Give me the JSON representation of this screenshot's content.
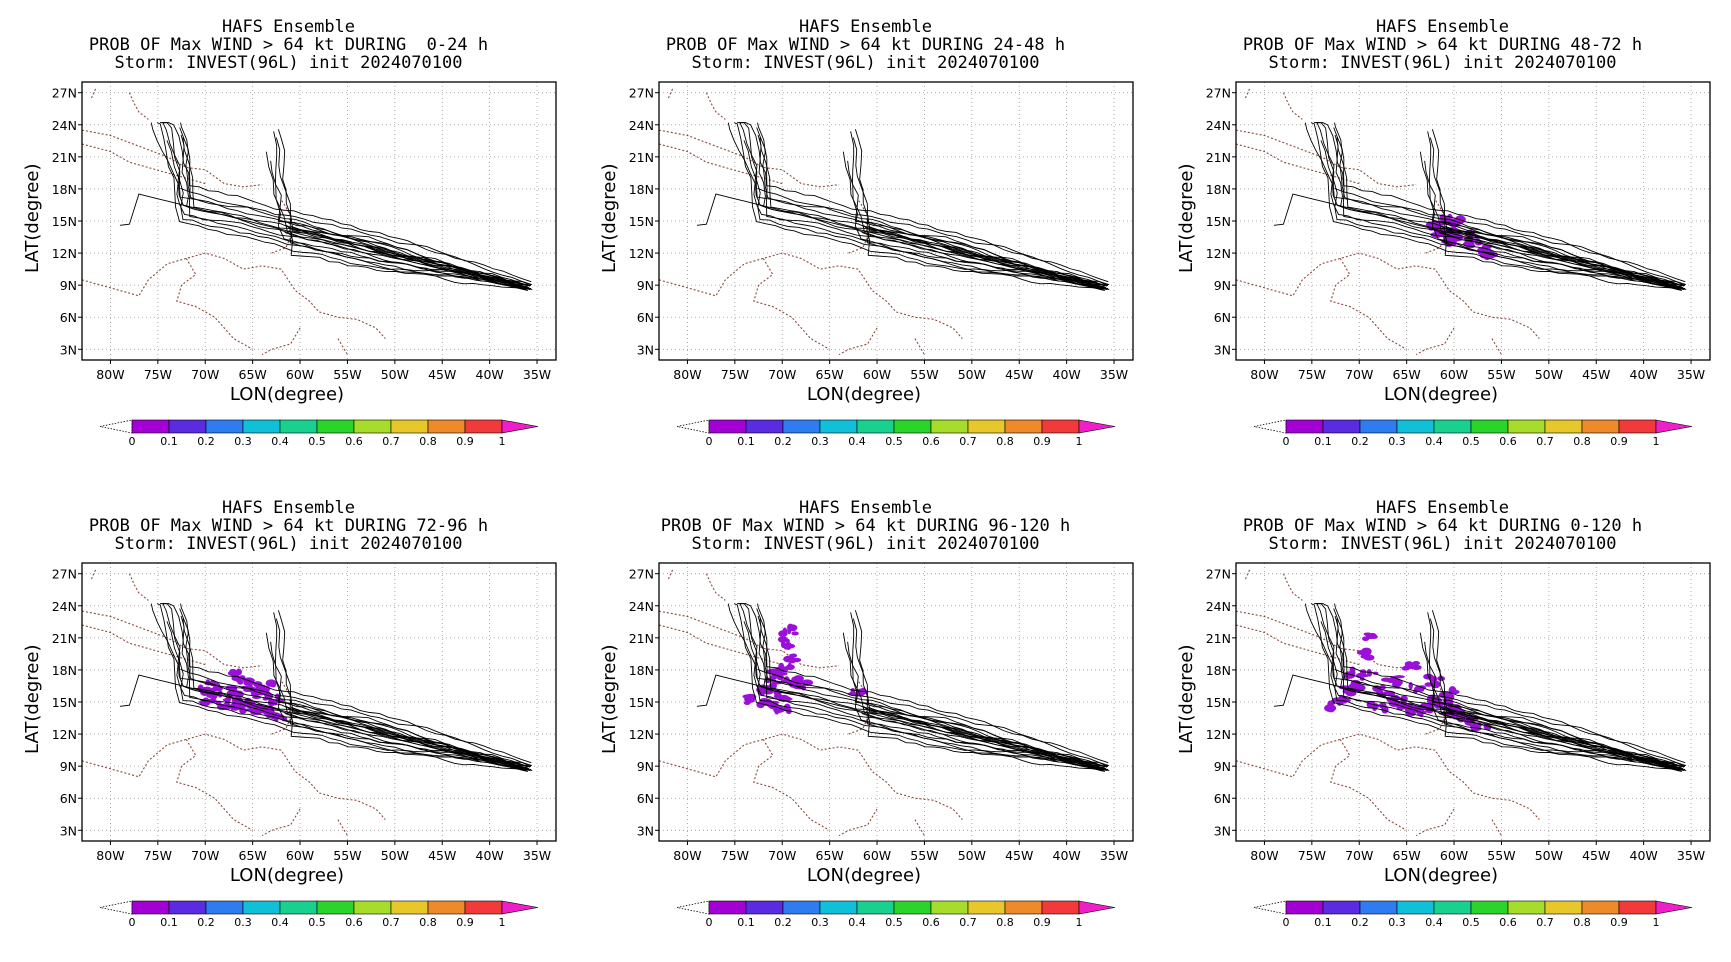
{
  "figure": {
    "chart_data": [
      {
        "type": "map",
        "title": [
          "HAFS Ensemble",
          "PROB OF Max WIND > 64 kt DURING  0-24 h",
          "Storm: INVEST(96L) init 2024070100"
        ],
        "xlabel": "LON(degree)",
        "ylabel": "LAT(degree)",
        "probability_blobs": []
      },
      {
        "type": "map",
        "title": [
          "HAFS Ensemble",
          "PROB OF Max WIND > 64 kt DURING 24-48 h",
          "Storm: INVEST(96L) init 2024070100"
        ],
        "xlabel": "LON(degree)",
        "ylabel": "LAT(degree)",
        "probability_blobs": []
      },
      {
        "type": "map",
        "title": [
          "HAFS Ensemble",
          "PROB OF Max WIND > 64 kt DURING 48-72 h",
          "Storm: INVEST(96L) init 2024070100"
        ],
        "xlabel": "LON(degree)",
        "ylabel": "LAT(degree)",
        "probability_blobs": [
          [
            -62,
            14.5
          ],
          [
            -61,
            15.2
          ],
          [
            -60,
            14.2
          ],
          [
            -59,
            13.6
          ],
          [
            -58,
            12.9
          ],
          [
            -57,
            12.3
          ],
          [
            -61.5,
            13.9
          ],
          [
            -59.5,
            15.0
          ],
          [
            -60.5,
            13.2
          ],
          [
            -56.3,
            11.9
          ]
        ]
      },
      {
        "type": "map",
        "title": [
          "HAFS Ensemble",
          "PROB OF Max WIND > 64 kt DURING 72-96 h",
          "Storm: INVEST(96L) init 2024070100"
        ],
        "xlabel": "LON(degree)",
        "ylabel": "LAT(degree)",
        "probability_blobs": [
          [
            -70,
            16
          ],
          [
            -69,
            16.5
          ],
          [
            -68,
            15.5
          ],
          [
            -67,
            16
          ],
          [
            -66,
            15
          ],
          [
            -65,
            14.5
          ],
          [
            -64,
            14.2
          ],
          [
            -63,
            14
          ],
          [
            -62,
            13.7
          ],
          [
            -66,
            17
          ],
          [
            -67,
            17.5
          ],
          [
            -65,
            16.3
          ],
          [
            -68,
            14.8
          ],
          [
            -64,
            15.6
          ],
          [
            -62.5,
            15.2
          ],
          [
            -63.5,
            16.5
          ],
          [
            -69.5,
            15.2
          ],
          [
            -66.5,
            14.2
          ]
        ]
      },
      {
        "type": "map",
        "title": [
          "HAFS Ensemble",
          "PROB OF Max WIND > 64 kt DURING 96-120 h",
          "Storm: INVEST(96L) init 2024070100"
        ],
        "xlabel": "LON(degree)",
        "ylabel": "LAT(degree)",
        "probability_blobs": [
          [
            -72,
            15
          ],
          [
            -71,
            14.6
          ],
          [
            -73,
            15.2
          ],
          [
            -70,
            15.6
          ],
          [
            -71,
            16.7
          ],
          [
            -70.5,
            17.5
          ],
          [
            -69.5,
            18
          ],
          [
            -69,
            17
          ],
          [
            -69,
            19
          ],
          [
            -69.5,
            20.5
          ],
          [
            -69.3,
            21.7
          ],
          [
            -68,
            16.5
          ],
          [
            -72,
            16.2
          ],
          [
            -70,
            14.2
          ],
          [
            -62,
            16
          ]
        ]
      },
      {
        "type": "map",
        "title": [
          "HAFS Ensemble",
          "PROB OF Max WIND > 64 kt DURING 0-120 h",
          "Storm: INVEST(96L) init 2024070100"
        ],
        "xlabel": "LON(degree)",
        "ylabel": "LAT(degree)",
        "probability_blobs": [
          [
            -72,
            15.2
          ],
          [
            -71,
            16
          ],
          [
            -70,
            16.5
          ],
          [
            -69,
            17.5
          ],
          [
            -68,
            16
          ],
          [
            -67,
            15.5
          ],
          [
            -66,
            15
          ],
          [
            -65,
            14.5
          ],
          [
            -64,
            14
          ],
          [
            -63,
            14.5
          ],
          [
            -62,
            15
          ],
          [
            -61,
            14.8
          ],
          [
            -60,
            14.2
          ],
          [
            -59,
            13.8
          ],
          [
            -58,
            13.2
          ],
          [
            -57,
            12.5
          ],
          [
            -69.5,
            19.5
          ],
          [
            -69,
            21
          ],
          [
            -70.5,
            17.8
          ],
          [
            -66.5,
            17
          ],
          [
            -64,
            16.2
          ],
          [
            -62,
            17
          ],
          [
            -72.5,
            14.6
          ],
          [
            -68,
            14.4
          ],
          [
            -60.5,
            15.8
          ],
          [
            -64.5,
            18.5
          ]
        ]
      }
    ],
    "axes": {
      "xlim": [
        -83,
        -33
      ],
      "ylim": [
        2,
        28
      ],
      "x_ticks": [
        "80W",
        "75W",
        "70W",
        "65W",
        "60W",
        "55W",
        "50W",
        "45W",
        "40W",
        "35W"
      ],
      "y_ticks": [
        "3N",
        "6N",
        "9N",
        "12N",
        "15N",
        "18N",
        "21N",
        "24N",
        "27N"
      ],
      "grid": true
    },
    "colorbar": {
      "labels": [
        "0",
        "0.1",
        "0.2",
        "0.3",
        "0.4",
        "0.5",
        "0.6",
        "0.7",
        "0.8",
        "0.9",
        "1"
      ],
      "colors": [
        "#a300d6",
        "#5a2be0",
        "#2f7cf0",
        "#10c0d8",
        "#18d18e",
        "#2ad42a",
        "#a6dd2a",
        "#e6c82a",
        "#ee8a2a",
        "#f23a3a"
      ],
      "over_color": "#f01ec8"
    },
    "colors": {
      "track": "#000000",
      "coast": "#8b4a3a",
      "prob": "#9a10d8",
      "grid": "#9a9a9a"
    }
  }
}
